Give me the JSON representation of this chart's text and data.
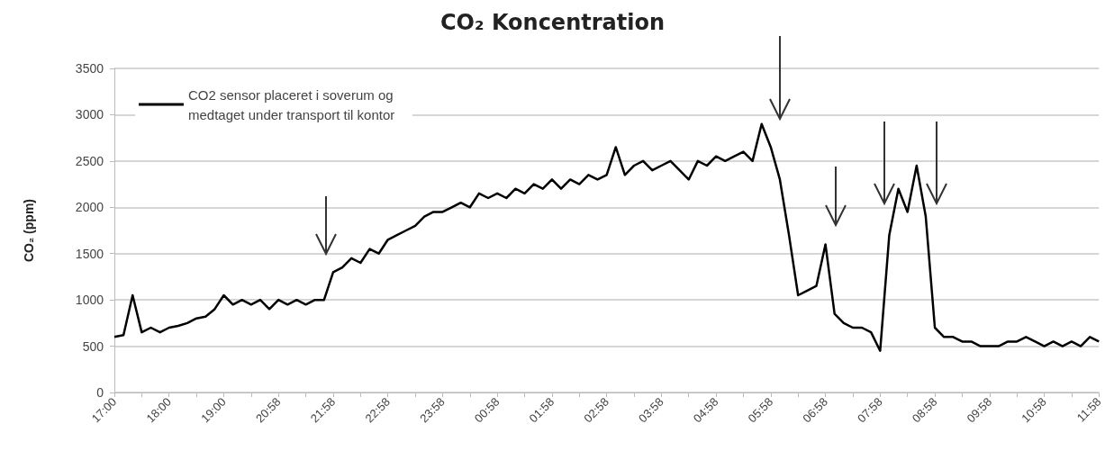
{
  "chart_data": {
    "type": "line",
    "title": "CO₂ Koncentration",
    "ylabel": "CO₂ (ppm)",
    "categories": [
      "17:00",
      null,
      null,
      null,
      null,
      null,
      "18:00",
      null,
      null,
      null,
      null,
      null,
      "19:00",
      null,
      null,
      null,
      null,
      null,
      "20:58",
      null,
      null,
      null,
      null,
      null,
      "21:58",
      null,
      null,
      null,
      null,
      null,
      "22:58",
      null,
      null,
      null,
      null,
      null,
      "23:58",
      null,
      null,
      null,
      null,
      null,
      "00:58",
      null,
      null,
      null,
      null,
      null,
      "01:58",
      null,
      null,
      null,
      null,
      null,
      "02:58",
      null,
      null,
      null,
      null,
      null,
      "03:58",
      null,
      null,
      null,
      null,
      null,
      "04:58",
      null,
      null,
      null,
      null,
      null,
      "05:58",
      null,
      null,
      null,
      null,
      null,
      "06:58",
      null,
      null,
      null,
      null,
      null,
      "07:58",
      null,
      null,
      null,
      null,
      null,
      "08:58",
      null,
      null,
      null,
      null,
      null,
      "09:58",
      null,
      null,
      null,
      null,
      null,
      "10:58",
      null,
      null,
      null,
      null,
      null,
      "11:58"
    ],
    "series": [
      {
        "name": "CO2 sensor placeret i soverum og medtaget under transport til kontor",
        "color": "#000000",
        "values": [
          600,
          620,
          1050,
          650,
          700,
          650,
          700,
          720,
          750,
          800,
          820,
          900,
          1050,
          950,
          1000,
          950,
          1000,
          900,
          1000,
          950,
          1000,
          950,
          1000,
          1000,
          1300,
          1350,
          1450,
          1400,
          1550,
          1500,
          1650,
          1700,
          1750,
          1800,
          1900,
          1950,
          1950,
          2000,
          2050,
          2000,
          2150,
          2100,
          2150,
          2100,
          2200,
          2150,
          2250,
          2200,
          2300,
          2200,
          2300,
          2250,
          2350,
          2300,
          2350,
          2650,
          2350,
          2450,
          2500,
          2400,
          2450,
          2500,
          2400,
          2300,
          2500,
          2450,
          2550,
          2500,
          2550,
          2600,
          2500,
          2900,
          2650,
          2300,
          1700,
          1050,
          1100,
          1150,
          1600,
          850,
          750,
          700,
          700,
          650,
          450,
          1700,
          2200,
          1950,
          2450,
          1900,
          700,
          600,
          600,
          550,
          550,
          500,
          500,
          500,
          550,
          550,
          600,
          550,
          500,
          550,
          500,
          550,
          500,
          600,
          550
        ]
      }
    ],
    "ylim": [
      0,
      3500
    ],
    "yticks": [
      0,
      500,
      1000,
      1500,
      2000,
      2500,
      3000,
      3500
    ],
    "grid": "y",
    "legend": "top left",
    "marker": "none",
    "line_style": "solid"
  }
}
